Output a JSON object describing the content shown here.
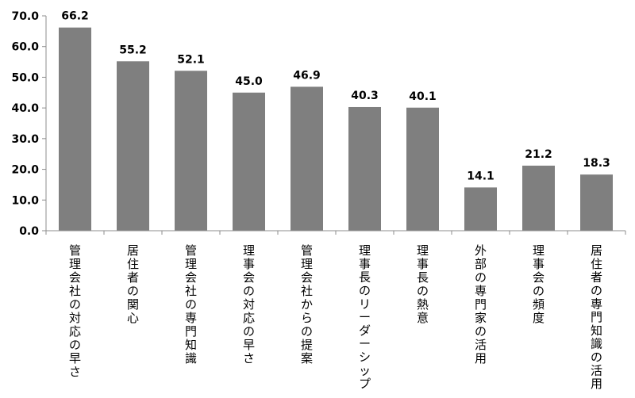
{
  "chart_data": {
    "type": "bar",
    "title": "",
    "xlabel": "",
    "ylabel": "",
    "ylim": [
      0,
      70
    ],
    "y_ticks": [
      "0.0",
      "10.0",
      "20.0",
      "30.0",
      "40.0",
      "50.0",
      "60.0",
      "70.0"
    ],
    "categories": [
      "管理会社の対応の早さ",
      "居住者の関心",
      "管理会社の専門知識",
      "理事会の対応の早さ",
      "管理会社からの提案",
      "理事長のリーダーシップ",
      "理事長の熱意",
      "外部の専門家の活用",
      "理事会の頻度",
      "居住者の専門知識の活用"
    ],
    "values": [
      66.2,
      55.2,
      52.1,
      45.0,
      46.9,
      40.3,
      40.1,
      14.1,
      21.2,
      18.3
    ],
    "data_labels": [
      "66.2",
      "55.2",
      "52.1",
      "45.0",
      "46.9",
      "40.3",
      "40.1",
      "14.1",
      "21.2",
      "18.3"
    ],
    "grid": false,
    "legend": "none",
    "bar_color": "#7f7f7f",
    "axis_color": "#8c8c8c"
  }
}
